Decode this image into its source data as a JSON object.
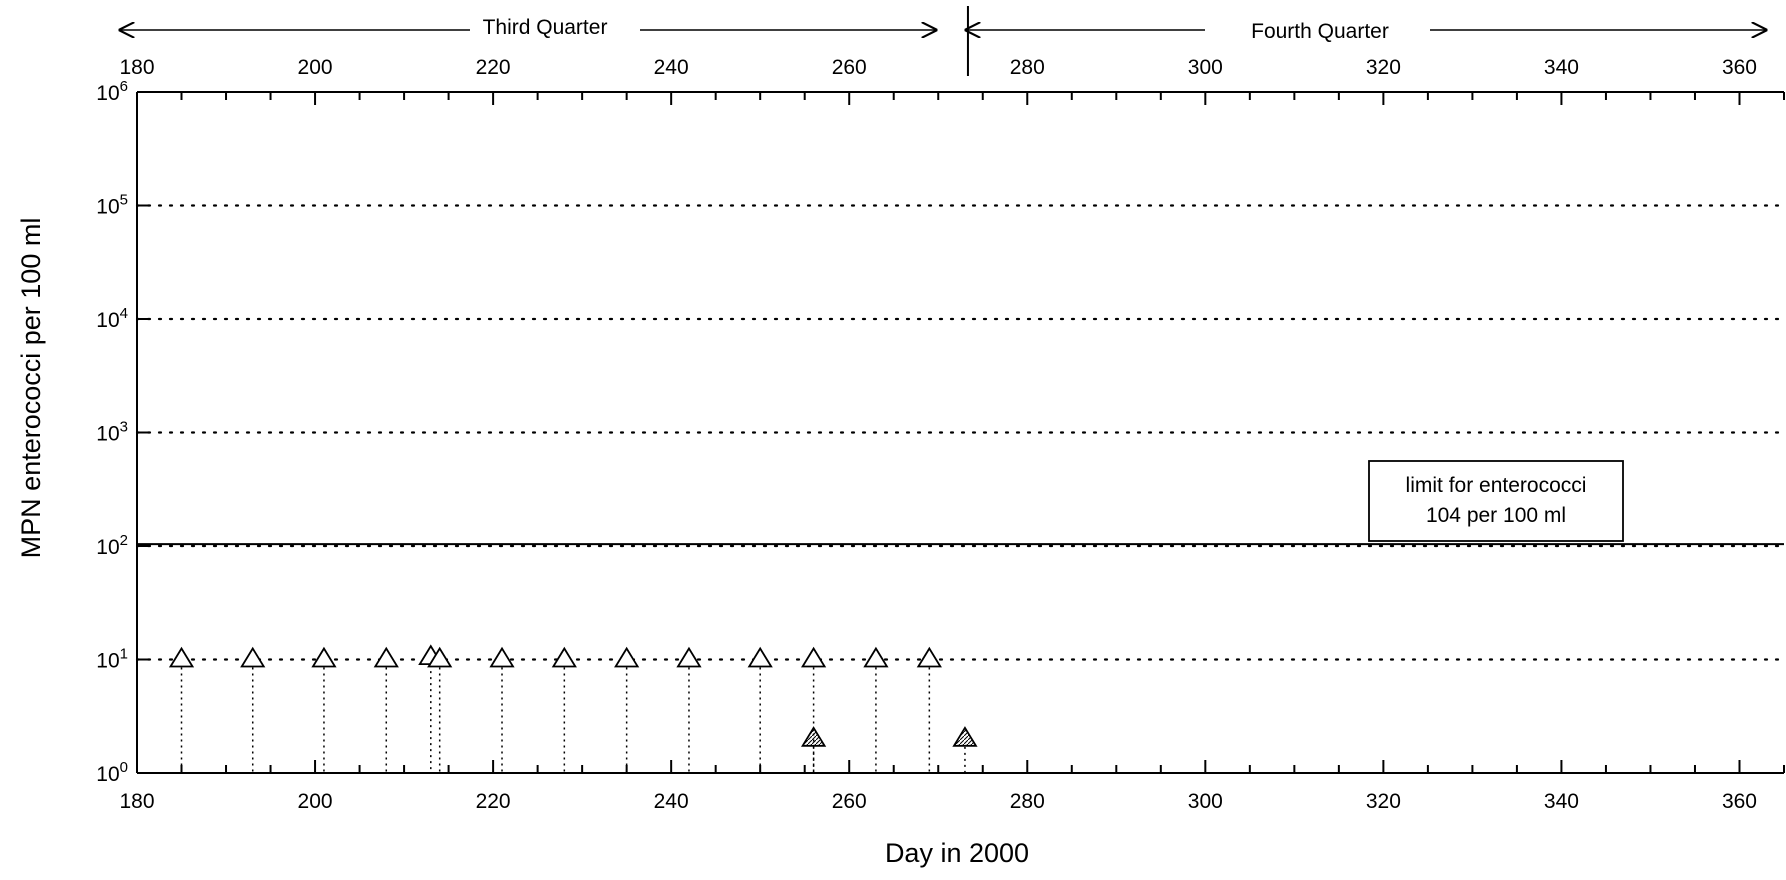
{
  "chart_data": {
    "type": "scatter",
    "title": "",
    "xlabel": "Day in 2000",
    "ylabel": "MPN enterococci per 100 ml",
    "xlim": [
      180,
      365
    ],
    "ylim": [
      1,
      1000000
    ],
    "yscale": "log",
    "grid": "dotted horizontal lines at each decade",
    "x_ticks": [
      180,
      200,
      220,
      240,
      260,
      280,
      300,
      320,
      340,
      360
    ],
    "y_ticks": [
      1,
      10,
      100,
      1000,
      10000,
      100000,
      1000000
    ],
    "y_tick_labels": [
      {
        "base": "10",
        "exp": "0"
      },
      {
        "base": "10",
        "exp": "1"
      },
      {
        "base": "10",
        "exp": "2"
      },
      {
        "base": "10",
        "exp": "3"
      },
      {
        "base": "10",
        "exp": "4"
      },
      {
        "base": "10",
        "exp": "5"
      },
      {
        "base": "10",
        "exp": "6"
      }
    ],
    "quarters": [
      {
        "label": "Third Quarter",
        "start": 181,
        "end": 273
      },
      {
        "label": "Fourth Quarter",
        "start": 273,
        "end": 365
      }
    ],
    "limit": {
      "value": 104,
      "line1": "limit for enterococci",
      "line2": "104 per 100 ml"
    },
    "series": [
      {
        "marker": "open-triangle",
        "x": [
          185,
          193,
          201,
          208,
          213,
          214,
          221,
          228,
          235,
          242,
          250,
          256,
          263,
          269
        ],
        "y": [
          10,
          10,
          10,
          10,
          10.5,
          10,
          10,
          10,
          10,
          10,
          10,
          10,
          10,
          10
        ]
      },
      {
        "marker": "hatched-triangle",
        "x": [
          256,
          273
        ],
        "y": [
          2,
          2
        ]
      }
    ]
  }
}
